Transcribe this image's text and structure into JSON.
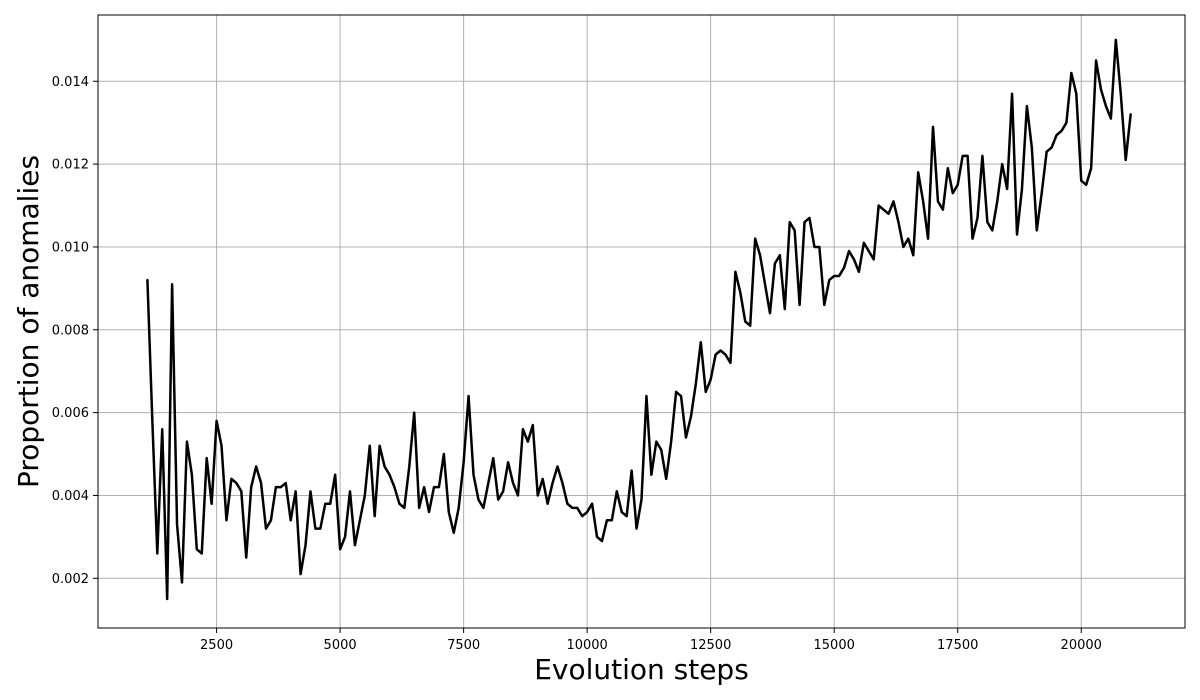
{
  "chart_data": {
    "type": "line",
    "xlabel": "Evolution steps",
    "ylabel": "Proportion of anomalies",
    "xlim": [
      100,
      22100
    ],
    "ylim": [
      0.0008,
      0.0156
    ],
    "x_ticks": [
      2500,
      5000,
      7500,
      10000,
      12500,
      15000,
      17500,
      20000
    ],
    "x_tick_labels": [
      "2500",
      "5000",
      "7500",
      "10000",
      "12500",
      "15000",
      "17500",
      "20000"
    ],
    "y_ticks": [
      0.002,
      0.004,
      0.006,
      0.008,
      0.01,
      0.012,
      0.014
    ],
    "y_tick_labels": [
      "0.002",
      "0.004",
      "0.006",
      "0.008",
      "0.010",
      "0.012",
      "0.014"
    ],
    "grid": true,
    "line_color": "#000000",
    "grid_color": "#b0b0b0",
    "series": [
      {
        "x": [
          1100,
          1200,
          1300,
          1400,
          1500,
          1600,
          1700,
          1800,
          1900,
          2000,
          2100,
          2200,
          2300,
          2400,
          2500,
          2600,
          2700,
          2800,
          2900,
          3000,
          3100,
          3200,
          3300,
          3400,
          3500,
          3600,
          3700,
          3800,
          3900,
          4000,
          4100,
          4200,
          4300,
          4400,
          4500,
          4600,
          4700,
          4800,
          4900,
          5000,
          5100,
          5200,
          5300,
          5400,
          5500,
          5600,
          5700,
          5800,
          5900,
          6000,
          6100,
          6200,
          6300,
          6400,
          6500,
          6600,
          6700,
          6800,
          6900,
          7000,
          7100,
          7200,
          7300,
          7400,
          7500,
          7600,
          7700,
          7800,
          7900,
          8000,
          8100,
          8200,
          8300,
          8400,
          8500,
          8600,
          8700,
          8800,
          8900,
          9000,
          9100,
          9200,
          9300,
          9400,
          9500,
          9600,
          9700,
          9800,
          9900,
          10000,
          10100,
          10200,
          10300,
          10400,
          10500,
          10600,
          10700,
          10800,
          10900,
          11000,
          11100,
          11200,
          11300,
          11400,
          11500,
          11600,
          11700,
          11800,
          11900,
          12000,
          12100,
          12200,
          12300,
          12400,
          12500,
          12600,
          12700,
          12800,
          12900,
          13000,
          13100,
          13200,
          13300,
          13400,
          13500,
          13600,
          13700,
          13800,
          13900,
          14000,
          14100,
          14200,
          14300,
          14400,
          14500,
          14600,
          14700,
          14800,
          14900,
          15000,
          15100,
          15200,
          15300,
          15400,
          15500,
          15600,
          15700,
          15800,
          15900,
          16000,
          16100,
          16200,
          16300,
          16400,
          16500,
          16600,
          16700,
          16800,
          16900,
          17000,
          17100,
          17200,
          17300,
          17400,
          17500,
          17600,
          17700,
          17800,
          17900,
          18000,
          18100,
          18200,
          18300,
          18400,
          18500,
          18600,
          18700,
          18800,
          18900,
          19000,
          19100,
          19200,
          19300,
          19400,
          19500,
          19600,
          19700,
          19800,
          19900,
          20000,
          20100,
          20200,
          20300,
          20400,
          20500,
          20600,
          20700,
          20800,
          20900,
          21000
        ],
        "y": [
          0.0092,
          0.0058,
          0.0026,
          0.0056,
          0.0015,
          0.0091,
          0.0033,
          0.0019,
          0.0053,
          0.0045,
          0.0027,
          0.0026,
          0.0049,
          0.0038,
          0.0058,
          0.0052,
          0.0034,
          0.0044,
          0.0043,
          0.0041,
          0.0025,
          0.0042,
          0.0047,
          0.0043,
          0.0032,
          0.0034,
          0.0042,
          0.0042,
          0.0043,
          0.0034,
          0.0041,
          0.0021,
          0.0028,
          0.0041,
          0.0032,
          0.0032,
          0.0038,
          0.0038,
          0.0045,
          0.0027,
          0.003,
          0.0041,
          0.0028,
          0.0034,
          0.004,
          0.0052,
          0.0035,
          0.0052,
          0.0047,
          0.0045,
          0.0042,
          0.0038,
          0.0037,
          0.0047,
          0.006,
          0.0037,
          0.0042,
          0.0036,
          0.0042,
          0.0042,
          0.005,
          0.0036,
          0.0031,
          0.0037,
          0.0048,
          0.0064,
          0.0045,
          0.0039,
          0.0037,
          0.0043,
          0.0049,
          0.0039,
          0.0041,
          0.0048,
          0.0043,
          0.004,
          0.0056,
          0.0053,
          0.0057,
          0.004,
          0.0044,
          0.0038,
          0.0043,
          0.0047,
          0.0043,
          0.0038,
          0.0037,
          0.0037,
          0.0035,
          0.0036,
          0.0038,
          0.003,
          0.0029,
          0.0034,
          0.0034,
          0.0041,
          0.0036,
          0.0035,
          0.0046,
          0.0032,
          0.0039,
          0.0064,
          0.0045,
          0.0053,
          0.0051,
          0.0044,
          0.0053,
          0.0065,
          0.0064,
          0.0054,
          0.0059,
          0.0067,
          0.0077,
          0.0065,
          0.0068,
          0.0074,
          0.0075,
          0.0074,
          0.0072,
          0.0094,
          0.0089,
          0.0082,
          0.0081,
          0.0102,
          0.0098,
          0.0091,
          0.0084,
          0.0096,
          0.0098,
          0.0085,
          0.0106,
          0.0104,
          0.0086,
          0.0106,
          0.0107,
          0.01,
          0.01,
          0.0086,
          0.0092,
          0.0093,
          0.0093,
          0.0095,
          0.0099,
          0.0097,
          0.0094,
          0.0101,
          0.0099,
          0.0097,
          0.011,
          0.0109,
          0.0108,
          0.0111,
          0.0106,
          0.01,
          0.0102,
          0.0098,
          0.0118,
          0.0111,
          0.0102,
          0.0129,
          0.0111,
          0.0109,
          0.0119,
          0.0113,
          0.0115,
          0.0122,
          0.0122,
          0.0102,
          0.0107,
          0.0122,
          0.0106,
          0.0104,
          0.0111,
          0.012,
          0.0114,
          0.0137,
          0.0103,
          0.0114,
          0.0134,
          0.0124,
          0.0104,
          0.0113,
          0.0123,
          0.0124,
          0.0127,
          0.0128,
          0.013,
          0.0142,
          0.0137,
          0.0116,
          0.0115,
          0.0119,
          0.0145,
          0.0138,
          0.0134,
          0.0131,
          0.015,
          0.0137,
          0.0121,
          0.0132
        ]
      }
    ]
  }
}
